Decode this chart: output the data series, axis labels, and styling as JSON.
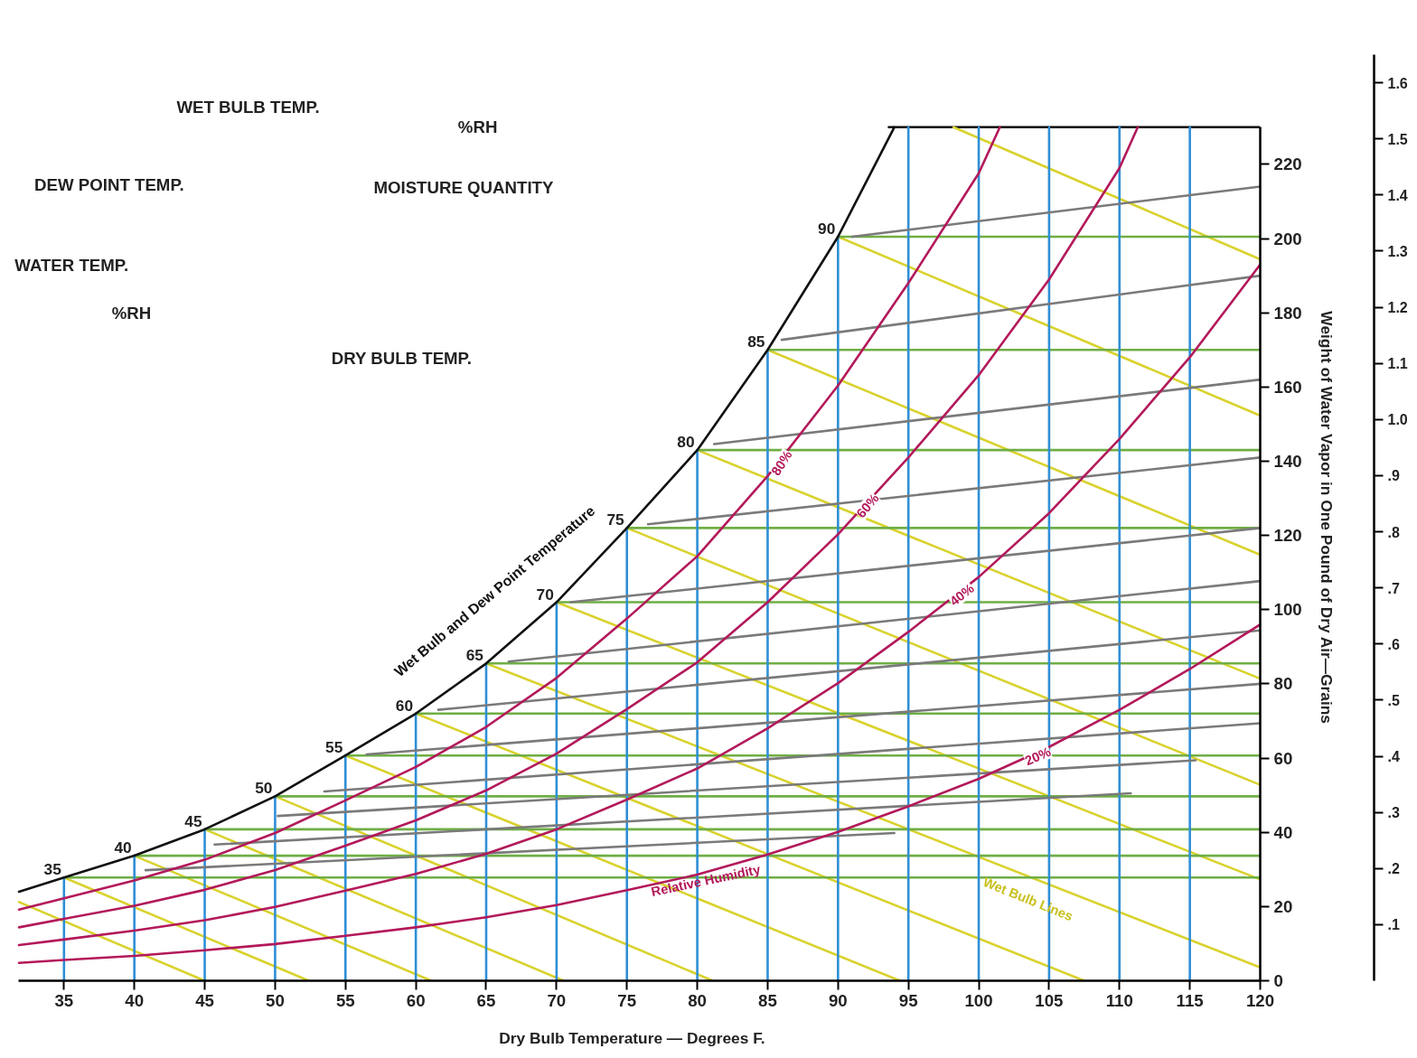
{
  "chart_data": {
    "type": "line",
    "xlabel": "Dry Bulb Temperature — Degrees F.",
    "ylabel": "Weight of Water Vapor in One Pound of Dry Air—Grains",
    "xlim": [
      31.8,
      120
    ],
    "ylim": [
      0,
      230
    ],
    "xticks": [
      35,
      40,
      45,
      50,
      55,
      60,
      65,
      70,
      75,
      80,
      85,
      90,
      95,
      100,
      105,
      110,
      115,
      120
    ],
    "yticks": [
      0,
      20,
      40,
      60,
      80,
      100,
      120,
      140,
      160,
      180,
      200,
      220
    ],
    "y2lim": [
      0,
      1.65
    ],
    "y2ticks": [
      {
        "value": 0.1,
        "label": ".1"
      },
      {
        "value": 0.2,
        "label": ".2"
      },
      {
        "value": 0.3,
        "label": ".3"
      },
      {
        "value": 0.4,
        "label": ".4"
      },
      {
        "value": 0.5,
        "label": ".5"
      },
      {
        "value": 0.6,
        "label": ".6"
      },
      {
        "value": 0.7,
        "label": ".7"
      },
      {
        "value": 0.8,
        "label": ".8"
      },
      {
        "value": 0.9,
        "label": ".9"
      },
      {
        "value": 1.0,
        "label": "1.0"
      },
      1.1,
      1.2,
      1.3,
      1.4,
      1.5,
      1.6
    ],
    "grid": false,
    "annotations": [
      {
        "text": "35",
        "x": 35,
        "y": 27.8
      },
      {
        "text": "40",
        "x": 40,
        "y": 33.7
      },
      {
        "text": "45",
        "x": 45,
        "y": 40.8
      },
      {
        "text": "50",
        "x": 50,
        "y": 49.7
      },
      {
        "text": "55",
        "x": 55,
        "y": 60.7
      },
      {
        "text": "60",
        "x": 60,
        "y": 72
      },
      {
        "text": "65",
        "x": 65,
        "y": 85.5
      },
      {
        "text": "70",
        "x": 70,
        "y": 102
      },
      {
        "text": "75",
        "x": 75,
        "y": 122
      },
      {
        "text": "80",
        "x": 80,
        "y": 143
      },
      {
        "text": "85",
        "x": 85,
        "y": 170
      },
      {
        "text": "90",
        "x": 90,
        "y": 200.5
      },
      {
        "text": "80%",
        "x": 86,
        "y": 139.5
      },
      {
        "text": "60%",
        "x": 92.1,
        "y": 128
      },
      {
        "text": "40%",
        "x": 98.8,
        "y": 104
      },
      {
        "text": "20%",
        "x": 104.2,
        "y": 60.5
      },
      {
        "text": "Relative Humidity",
        "x": 80.6,
        "y": 27
      },
      "Wet Bulb and Dew Point Temperature",
      "Wet Bulb Lines",
      "WET BULB TEMP.",
      "%RH",
      "DEW POINT TEMP.",
      "MOISTURE QUANTITY",
      "WATER TEMP.",
      "%RH",
      "DRY BULB TEMP."
    ],
    "series": [
      {
        "type": "line",
        "color": "#d9d22e",
        "x": [
          31.8,
          45
        ],
        "values": [
          21.2,
          0
        ]
      },
      {
        "type": "line",
        "color": "#d9d22e",
        "x": [
          35,
          52.4
        ],
        "values": [
          27.8,
          0
        ]
      },
      {
        "type": "line",
        "color": "#d9d22e",
        "x": [
          40,
          61.1
        ],
        "values": [
          33.7,
          0
        ]
      },
      {
        "type": "line",
        "color": "#d9d22e",
        "x": [
          45,
          70.5
        ],
        "values": [
          40.8,
          0
        ]
      },
      {
        "type": "line",
        "color": "#d9d22e",
        "x": [
          50,
          81.1
        ],
        "values": [
          49.7,
          0
        ]
      },
      {
        "type": "line",
        "color": "#d9d22e",
        "x": [
          55,
          94.4
        ],
        "values": [
          60.7,
          0
        ]
      },
      {
        "type": "line",
        "color": "#d9d22e",
        "x": [
          60,
          107.5
        ],
        "values": [
          72,
          0
        ]
      },
      {
        "type": "line",
        "color": "#d9d22e",
        "x": [
          65,
          120
        ],
        "values": [
          85.5,
          3.6
        ]
      },
      {
        "type": "line",
        "color": "#d9d22e",
        "x": [
          70,
          120
        ],
        "values": [
          102,
          27.3
        ]
      },
      {
        "type": "line",
        "color": "#d9d22e",
        "x": [
          75,
          120
        ],
        "values": [
          122,
          52.8
        ]
      },
      {
        "type": "line",
        "color": "#d9d22e",
        "x": [
          80,
          120
        ],
        "values": [
          143,
          81.4
        ]
      },
      {
        "type": "line",
        "color": "#d9d22e",
        "x": [
          85,
          120
        ],
        "values": [
          170,
          114.8
        ]
      },
      {
        "type": "line",
        "color": "#d9d22e",
        "x": [
          90,
          120
        ],
        "values": [
          200.5,
          152.3
        ]
      },
      {
        "type": "line",
        "color": "#d9d22e",
        "x": [
          98.2,
          120
        ],
        "values": [
          230,
          194.4
        ]
      },
      {
        "type": "line",
        "color": "#6fae45",
        "x": [
          35,
          120
        ],
        "values": [
          27.8,
          27.8
        ]
      },
      {
        "type": "line",
        "color": "#6fae45",
        "x": [
          40,
          120
        ],
        "values": [
          33.7,
          33.7
        ]
      },
      {
        "type": "line",
        "color": "#6fae45",
        "x": [
          45,
          120
        ],
        "values": [
          40.8,
          40.8
        ]
      },
      {
        "type": "line",
        "color": "#6fae45",
        "x": [
          50,
          120
        ],
        "values": [
          49.7,
          49.7
        ]
      },
      {
        "type": "line",
        "color": "#6fae45",
        "x": [
          55,
          120
        ],
        "values": [
          60.7,
          60.7
        ]
      },
      {
        "type": "line",
        "color": "#6fae45",
        "x": [
          60,
          120
        ],
        "values": [
          72,
          72
        ]
      },
      {
        "type": "line",
        "color": "#6fae45",
        "x": [
          65,
          120
        ],
        "values": [
          85.5,
          85.5
        ]
      },
      {
        "type": "line",
        "color": "#6fae45",
        "x": [
          70,
          120
        ],
        "values": [
          102,
          102
        ]
      },
      {
        "type": "line",
        "color": "#6fae45",
        "x": [
          75,
          120
        ],
        "values": [
          122,
          122
        ]
      },
      {
        "type": "line",
        "color": "#6fae45",
        "x": [
          80,
          120
        ],
        "values": [
          143,
          143
        ]
      },
      {
        "type": "line",
        "color": "#6fae45",
        "x": [
          85,
          120
        ],
        "values": [
          170,
          170
        ]
      },
      {
        "type": "line",
        "color": "#6fae45",
        "x": [
          90,
          120
        ],
        "values": [
          200.5,
          200.5
        ]
      },
      {
        "type": "line",
        "color": "#2f8fd6",
        "x": [
          35,
          35
        ],
        "values": [
          0,
          27.8
        ]
      },
      {
        "type": "line",
        "color": "#2f8fd6",
        "x": [
          40,
          40
        ],
        "values": [
          0,
          33.7
        ]
      },
      {
        "type": "line",
        "color": "#2f8fd6",
        "x": [
          45,
          45
        ],
        "values": [
          0,
          40.8
        ]
      },
      {
        "type": "line",
        "color": "#2f8fd6",
        "x": [
          50,
          50
        ],
        "values": [
          0,
          49.7
        ]
      },
      {
        "type": "line",
        "color": "#2f8fd6",
        "x": [
          55,
          55
        ],
        "values": [
          0,
          60.7
        ]
      },
      {
        "type": "line",
        "color": "#2f8fd6",
        "x": [
          60,
          60
        ],
        "values": [
          0,
          72
        ]
      },
      {
        "type": "line",
        "color": "#2f8fd6",
        "x": [
          65,
          65
        ],
        "values": [
          0,
          85.5
        ]
      },
      {
        "type": "line",
        "color": "#2f8fd6",
        "x": [
          70,
          70
        ],
        "values": [
          0,
          102
        ]
      },
      {
        "type": "line",
        "color": "#2f8fd6",
        "x": [
          75,
          75
        ],
        "values": [
          0,
          122
        ]
      },
      {
        "type": "line",
        "color": "#2f8fd6",
        "x": [
          80,
          80
        ],
        "values": [
          0,
          143
        ]
      },
      {
        "type": "line",
        "color": "#2f8fd6",
        "x": [
          85,
          85
        ],
        "values": [
          0,
          170
        ]
      },
      {
        "type": "line",
        "color": "#2f8fd6",
        "x": [
          90,
          90
        ],
        "values": [
          0,
          200.5
        ]
      },
      {
        "type": "line",
        "color": "#2f8fd6",
        "x": [
          95,
          95
        ],
        "values": [
          0,
          230
        ]
      },
      {
        "type": "line",
        "color": "#2f8fd6",
        "x": [
          100,
          100
        ],
        "values": [
          0,
          230
        ]
      },
      {
        "type": "line",
        "color": "#2f8fd6",
        "x": [
          105,
          105
        ],
        "values": [
          0,
          230
        ]
      },
      {
        "type": "line",
        "color": "#2f8fd6",
        "x": [
          110,
          110
        ],
        "values": [
          0,
          230
        ]
      },
      {
        "type": "line",
        "color": "#2f8fd6",
        "x": [
          115,
          115
        ],
        "values": [
          0,
          230
        ]
      },
      {
        "type": "line",
        "color": "#7a7a7a",
        "x": [
          40.8,
          94
        ],
        "values": [
          29.8,
          39.8
        ]
      },
      {
        "type": "line",
        "color": "#7a7a7a",
        "x": [
          45.7,
          110.8
        ],
        "values": [
          36.7,
          50.5
        ]
      },
      {
        "type": "line",
        "color": "#7a7a7a",
        "x": [
          50.2,
          115.4
        ],
        "values": [
          44.4,
          59.4
        ]
      },
      {
        "type": "line",
        "color": "#7a7a7a",
        "x": [
          53.5,
          120
        ],
        "values": [
          51,
          69.4
        ]
      },
      {
        "type": "line",
        "color": "#7a7a7a",
        "x": [
          56.5,
          120
        ],
        "values": [
          61,
          80
        ]
      },
      {
        "type": "line",
        "color": "#7a7a7a",
        "x": [
          61.6,
          120
        ],
        "values": [
          73,
          94.4
        ]
      },
      {
        "type": "line",
        "color": "#7a7a7a",
        "x": [
          66.6,
          120
        ],
        "values": [
          86,
          107.7
        ]
      },
      {
        "type": "line",
        "color": "#7a7a7a",
        "x": [
          71,
          120
        ],
        "values": [
          102,
          122
        ]
      },
      {
        "type": "line",
        "color": "#7a7a7a",
        "x": [
          76.5,
          120
        ],
        "values": [
          123,
          141
        ]
      },
      {
        "type": "line",
        "color": "#7a7a7a",
        "x": [
          81.2,
          120
        ],
        "values": [
          144.6,
          162
        ]
      },
      {
        "type": "line",
        "color": "#7a7a7a",
        "x": [
          86,
          120
        ],
        "values": [
          172.7,
          190
        ]
      },
      {
        "type": "line",
        "color": "#7a7a7a",
        "x": [
          91,
          120
        ],
        "values": [
          200.5,
          214
        ]
      },
      {
        "type": "line",
        "color": "#b3195a",
        "x": [
          31.8,
          35,
          40,
          45,
          50,
          55,
          60,
          65,
          70,
          75,
          80,
          85,
          90,
          95,
          100,
          101.5
        ],
        "values": [
          19.2,
          22.2,
          27,
          32.6,
          39.8,
          48.6,
          57.6,
          68.4,
          81.6,
          97.6,
          114.4,
          136,
          160.4,
          188,
          217.6,
          230
        ]
      },
      {
        "type": "line",
        "color": "#b3195a",
        "x": [
          31.8,
          35,
          40,
          45,
          50,
          55,
          60,
          65,
          70,
          75,
          80,
          85,
          90,
          95,
          100,
          105,
          110,
          111.3
        ],
        "values": [
          14.4,
          16.7,
          20.2,
          24.5,
          29.8,
          36.4,
          43.2,
          51.3,
          61.2,
          73.2,
          85.8,
          102,
          120.3,
          141,
          163.2,
          189,
          219,
          230
        ]
      },
      {
        "type": "line",
        "color": "#b3195a",
        "x": [
          31.8,
          35,
          40,
          45,
          50,
          55,
          60,
          65,
          70,
          75,
          80,
          85,
          90,
          95,
          100,
          105,
          110,
          115,
          120
        ],
        "values": [
          9.6,
          11.1,
          13.5,
          16.3,
          19.9,
          24.3,
          28.8,
          34.2,
          40.8,
          48.8,
          57.2,
          68,
          80.2,
          94,
          108.8,
          126,
          146,
          168,
          193
        ]
      },
      {
        "type": "line",
        "color": "#b3195a",
        "x": [
          31.8,
          35,
          40,
          45,
          50,
          55,
          60,
          65,
          70,
          75,
          80,
          85,
          90,
          95,
          100,
          105,
          110,
          115,
          120
        ],
        "values": [
          4.8,
          5.6,
          6.7,
          8.2,
          9.9,
          12.1,
          14.4,
          17.1,
          20.4,
          24.4,
          28.6,
          34,
          40.1,
          47,
          54.4,
          63,
          73,
          84,
          96
        ]
      },
      {
        "type": "line",
        "color": "#111111",
        "x": [
          31.8,
          35,
          40,
          45,
          50,
          55,
          60,
          65,
          70,
          75,
          80,
          85,
          90,
          94
        ],
        "values": [
          24,
          27.8,
          33.7,
          40.8,
          49.7,
          60.7,
          72,
          85.5,
          102,
          122,
          143,
          170,
          200.5,
          230
        ]
      }
    ]
  }
}
